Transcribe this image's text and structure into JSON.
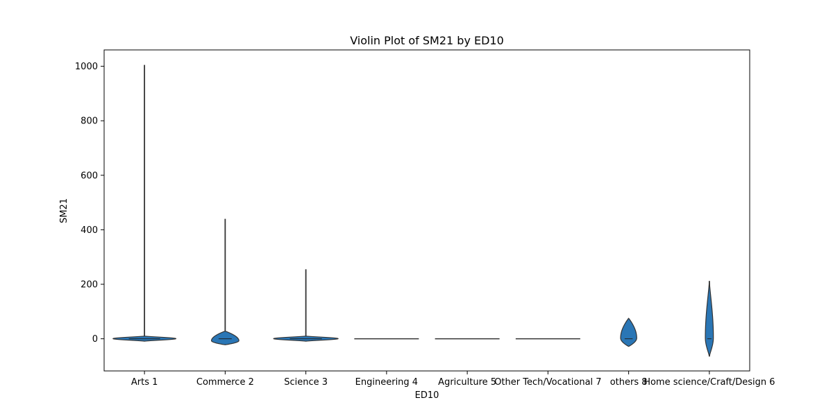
{
  "chart_data": {
    "type": "violin",
    "title": "Violin Plot of SM21 by ED10",
    "xlabel": "ED10",
    "ylabel": "SM21",
    "ylim": [
      -118,
      1060
    ],
    "yticks": [
      0,
      200,
      400,
      600,
      800,
      1000
    ],
    "grid": false,
    "legend": "none",
    "color": "#2a76b5",
    "line_color": "#333333",
    "categories": [
      "Arts 1",
      "Commerce 2",
      "Science 3",
      "Engineering 4",
      "Agriculture 5",
      "Other Tech/Vocational 7",
      "others 8",
      "Home science/Craft/Design 6"
    ],
    "violins": [
      {
        "category": "Arts 1",
        "ymin": 0,
        "ymax": 1005,
        "body_min": -9,
        "body_max": 10,
        "median": 0,
        "max_width": 0.78,
        "shape": "flat"
      },
      {
        "category": "Commerce 2",
        "ymin": 0,
        "ymax": 440,
        "body_min": -22,
        "body_max": 28,
        "median": 0,
        "max_width": 0.34,
        "shape": "round"
      },
      {
        "category": "Science 3",
        "ymin": 0,
        "ymax": 255,
        "body_min": -9,
        "body_max": 10,
        "median": 0,
        "max_width": 0.8,
        "shape": "flat"
      },
      {
        "category": "Engineering 4",
        "ymin": 0,
        "ymax": 0,
        "body_min": 0,
        "body_max": 0,
        "median": 0,
        "max_width": 0.8,
        "shape": "line"
      },
      {
        "category": "Agriculture 5",
        "ymin": 0,
        "ymax": 0,
        "body_min": 0,
        "body_max": 0,
        "median": 0,
        "max_width": 0.8,
        "shape": "line"
      },
      {
        "category": "Other Tech/Vocational 7",
        "ymin": 0,
        "ymax": 0,
        "body_min": 0,
        "body_max": 0,
        "median": 0,
        "max_width": 0.8,
        "shape": "line"
      },
      {
        "category": "others 8",
        "ymin": -28,
        "ymax": 75,
        "body_min": -28,
        "body_max": 75,
        "median": 0,
        "max_width": 0.2,
        "shape": "round"
      },
      {
        "category": "Home science/Craft/Design 6",
        "ymin": -65,
        "ymax": 212,
        "body_min": -65,
        "body_max": 212,
        "median": 0,
        "max_width": 0.1,
        "shape": "tall"
      }
    ]
  }
}
